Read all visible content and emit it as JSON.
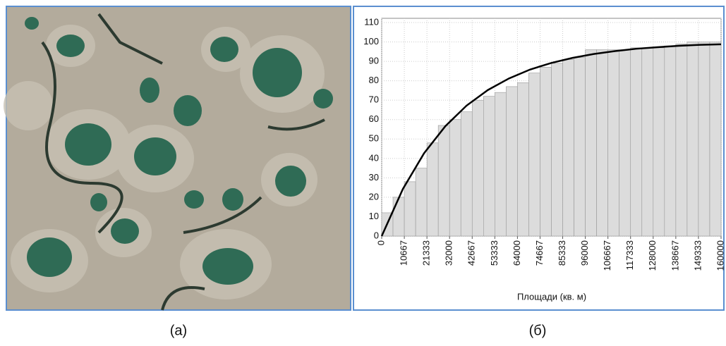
{
  "captions": [
    "(а)",
    "(б)"
  ],
  "chart_data": {
    "type": "histogram",
    "x_label": "Площади (кв. м)",
    "bins": [
      0,
      5333.33,
      10666.67,
      16000,
      21333.33,
      26666.67,
      32000,
      37333.33,
      42666.67,
      48000,
      53333.33,
      58666.67,
      64000,
      69333.33,
      74666.67,
      80000,
      85333.33,
      90666.67,
      96000,
      101333.33,
      106666.67,
      112000,
      117333.33,
      122666.67,
      128000,
      133333.33,
      138666.67,
      144000,
      149333.33,
      154666.67,
      160000
    ],
    "values": [
      12,
      20,
      28,
      35,
      48,
      57,
      60,
      64,
      70,
      72,
      74,
      77,
      79,
      84,
      87,
      89,
      91,
      92,
      96,
      96,
      96,
      96,
      97,
      97,
      97,
      98,
      99,
      100,
      100,
      100
    ],
    "color": "#dcdcdc",
    "fit_line": {
      "color": "#000000",
      "x": [
        0,
        10000,
        20000,
        30000,
        40000,
        50000,
        60000,
        70000,
        80000,
        90000,
        100000,
        110000,
        120000,
        130000,
        140000,
        150000,
        160000
      ],
      "values": [
        0,
        24.3,
        42.7,
        56.6,
        67.2,
        75.2,
        81.2,
        85.8,
        89.2,
        91.8,
        93.8,
        95.3,
        96.5,
        97.3,
        98.0,
        98.5,
        98.8
      ]
    },
    "xlim": [
      0,
      160000
    ],
    "xticks": [
      0,
      10667,
      21333,
      32000,
      42667,
      53333,
      64000,
      74667,
      85333,
      96000,
      106667,
      117333,
      128000,
      138667,
      149333,
      160000
    ],
    "ylim": [
      0,
      110
    ],
    "yticks": [
      0,
      10,
      20,
      30,
      40,
      50,
      60,
      70,
      80,
      90,
      100,
      110
    ],
    "grid": true
  }
}
